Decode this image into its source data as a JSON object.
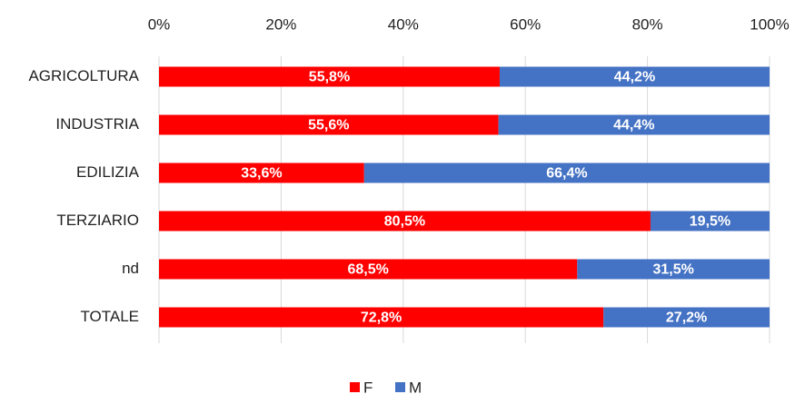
{
  "chart_data": {
    "type": "bar",
    "orientation": "horizontal",
    "stacked": true,
    "grid": true,
    "categories": [
      "AGRICOLTURA",
      "INDUSTRIA",
      "EDILIZIA",
      "TERZIARIO",
      "nd",
      "TOTALE"
    ],
    "series": [
      {
        "name": "F",
        "color": "#ff0000",
        "values": [
          55.8,
          55.6,
          33.6,
          80.5,
          68.5,
          72.8
        ],
        "value_labels": [
          "55,8%",
          "55,6%",
          "33,6%",
          "80,5%",
          "68,5%",
          "72,8%"
        ]
      },
      {
        "name": "M",
        "color": "#4472c4",
        "values": [
          44.2,
          44.4,
          66.4,
          19.5,
          31.5,
          27.2
        ],
        "value_labels": [
          "44,2%",
          "44,4%",
          "66,4%",
          "19,5%",
          "31,5%",
          "27,2%"
        ]
      }
    ],
    "xlim": [
      0,
      100
    ],
    "xticks": [
      {
        "value": 0,
        "label": "0%"
      },
      {
        "value": 20,
        "label": "20%"
      },
      {
        "value": 40,
        "label": "40%"
      },
      {
        "value": 60,
        "label": "60%"
      },
      {
        "value": 80,
        "label": "80%"
      },
      {
        "value": 100,
        "label": "100%"
      }
    ]
  }
}
